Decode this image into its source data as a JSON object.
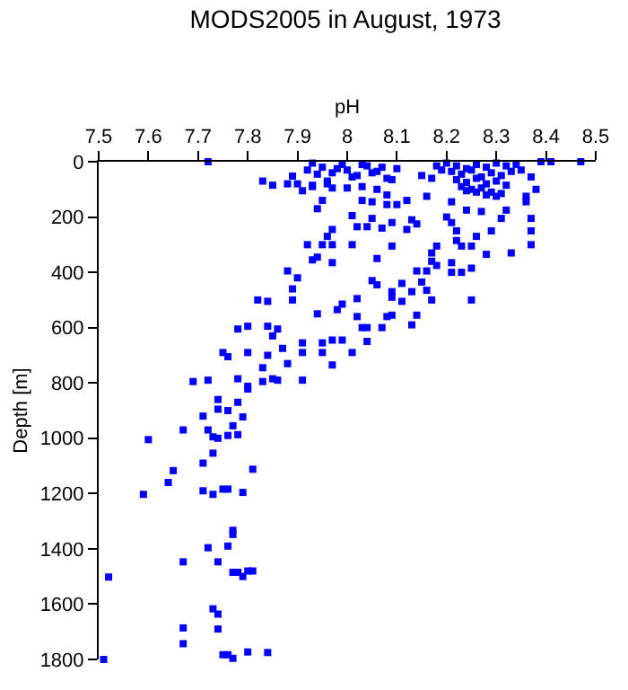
{
  "chart_data": {
    "type": "scatter",
    "title": "MODS2005 in August, 1973",
    "xlabel": "pH",
    "ylabel": "Depth [m]",
    "xlim": [
      7.5,
      8.5
    ],
    "xticks": [
      7.5,
      7.6,
      7.7,
      7.8,
      7.9,
      8,
      8.1,
      8.2,
      8.3,
      8.4,
      8.5
    ],
    "ylim": [
      1800,
      0
    ],
    "yticks": [
      0,
      200,
      400,
      600,
      800,
      1000,
      1200,
      1400,
      1600,
      1800
    ],
    "marker": "square",
    "series": [
      {
        "color": "#0000ff",
        "x": [
          7.72,
          7.83,
          7.85,
          7.88,
          7.89,
          7.9,
          7.91,
          7.92,
          7.93,
          7.94,
          7.95,
          7.96,
          7.97,
          7.96,
          7.97,
          7.92,
          7.95,
          7.93,
          7.94,
          7.97,
          7.88,
          7.9,
          7.89,
          7.82,
          7.84,
          7.89,
          7.8,
          7.78,
          7.84,
          7.86,
          7.85,
          7.87,
          7.75,
          7.76,
          7.8,
          7.84,
          7.88,
          7.83,
          7.91,
          7.91,
          7.95,
          7.95,
          7.97,
          7.99,
          7.97,
          8.01,
          8.04,
          7.94,
          7.98,
          7.99,
          8.02,
          8.02,
          8.03,
          8.04,
          8.07,
          8.08,
          8.09,
          8.05,
          8.06,
          8.09,
          8.09,
          8.11,
          8.11,
          8.13,
          8.13,
          8.14,
          8.15,
          8.16,
          8.17,
          8.06,
          8.14,
          8.16,
          8.17,
          8.18,
          8.21,
          8.21,
          8.23,
          8.25,
          8.25,
          8.09,
          8.17,
          8.18,
          8.01,
          8.02,
          8.04,
          8.05,
          8.07,
          8.09,
          8.12,
          8.13,
          8.14,
          8.01,
          8.03,
          8.05,
          8.08,
          8.12,
          8.1,
          8.08,
          8.16,
          8.2,
          8.21,
          8.22,
          8.23,
          8.25,
          8.28,
          8.33,
          8.37,
          8.37,
          8.37,
          8.31,
          8.29,
          8.26,
          8.22,
          8.27,
          8.32,
          8.36,
          8.36,
          8.38,
          8.37,
          8.39,
          8.41,
          8.47,
          8.21,
          8.24,
          7.93,
          7.95,
          7.97,
          7.99,
          8.0,
          8.02,
          8.04,
          8.06,
          8.08,
          8.1,
          7.94,
          7.96,
          7.98,
          8.01,
          8.03,
          8.05,
          8.07,
          8.09,
          7.93,
          7.97,
          8.0,
          8.03,
          8.06,
          8.15,
          8.17,
          8.19,
          8.18,
          8.2,
          8.22,
          8.24,
          8.26,
          8.28,
          8.3,
          8.32,
          8.34,
          8.21,
          8.23,
          8.25,
          8.27,
          8.29,
          8.31,
          8.33,
          8.35,
          8.22,
          8.24,
          8.26,
          8.28,
          8.3,
          8.32,
          8.23,
          8.25,
          8.27,
          8.29,
          8.31,
          8.24,
          8.26,
          8.28,
          8.3,
          7.69,
          7.72,
          7.78,
          7.8,
          7.83,
          7.85,
          7.86,
          7.91,
          7.8,
          7.74,
          7.78,
          7.71,
          7.76,
          7.74,
          7.79,
          7.67,
          7.72,
          7.77,
          7.6,
          7.73,
          7.74,
          7.76,
          7.78,
          7.73,
          7.71,
          7.65,
          7.81,
          7.64,
          7.59,
          7.71,
          7.73,
          7.75,
          7.76,
          7.79,
          7.77,
          7.77,
          7.72,
          7.76,
          7.67,
          7.74,
          7.52,
          7.77,
          7.78,
          7.79,
          7.8,
          7.81,
          7.73,
          7.74,
          7.67,
          7.74,
          7.67,
          7.51,
          7.75,
          7.76,
          7.77,
          7.8,
          7.84
        ],
        "values": [
          0,
          70,
          85,
          80,
          52,
          80,
          105,
          30,
          85,
          170,
          140,
          80,
          245,
          270,
          300,
          300,
          300,
          355,
          345,
          365,
          395,
          420,
          460,
          500,
          505,
          500,
          595,
          605,
          595,
          605,
          630,
          675,
          690,
          705,
          690,
          700,
          730,
          745,
          655,
          690,
          655,
          690,
          645,
          645,
          735,
          690,
          650,
          550,
          535,
          515,
          495,
          560,
          600,
          600,
          600,
          560,
          555,
          430,
          445,
          470,
          490,
          440,
          505,
          470,
          590,
          555,
          435,
          465,
          500,
          350,
          395,
          395,
          360,
          375,
          365,
          400,
          400,
          385,
          500,
          305,
          330,
          305,
          195,
          235,
          235,
          205,
          240,
          220,
          245,
          210,
          225,
          300,
          140,
          145,
          155,
          140,
          155,
          120,
          125,
          200,
          220,
          285,
          305,
          305,
          335,
          330,
          300,
          250,
          205,
          205,
          250,
          270,
          250,
          180,
          175,
          145,
          125,
          100,
          55,
          0,
          0,
          0,
          145,
          175,
          5,
          20,
          40,
          10,
          30,
          50,
          15,
          35,
          60,
          25,
          45,
          70,
          25,
          55,
          10,
          40,
          20,
          65,
          90,
          95,
          95,
          90,
          100,
          50,
          60,
          30,
          15,
          5,
          15,
          25,
          10,
          20,
          5,
          15,
          10,
          35,
          45,
          30,
          55,
          40,
          50,
          35,
          30,
          65,
          75,
          60,
          80,
          70,
          85,
          90,
          100,
          95,
          110,
          115,
          105,
          110,
          120,
          125,
          795,
          790,
          785,
          812,
          795,
          785,
          790,
          790,
          822,
          860,
          870,
          920,
          900,
          895,
          923,
          970,
          970,
          955,
          1005,
          995,
          1000,
          990,
          987,
          1054,
          1090,
          1117,
          1112,
          1160,
          1203,
          1190,
          1203,
          1184,
          1184,
          1196,
          1333,
          1348,
          1396,
          1390,
          1447,
          1447,
          1502,
          1485,
          1485,
          1500,
          1480,
          1480,
          1617,
          1636,
          1686,
          1690,
          1743,
          1800,
          1783,
          1783,
          1796,
          1773,
          1775
        ]
      }
    ]
  }
}
